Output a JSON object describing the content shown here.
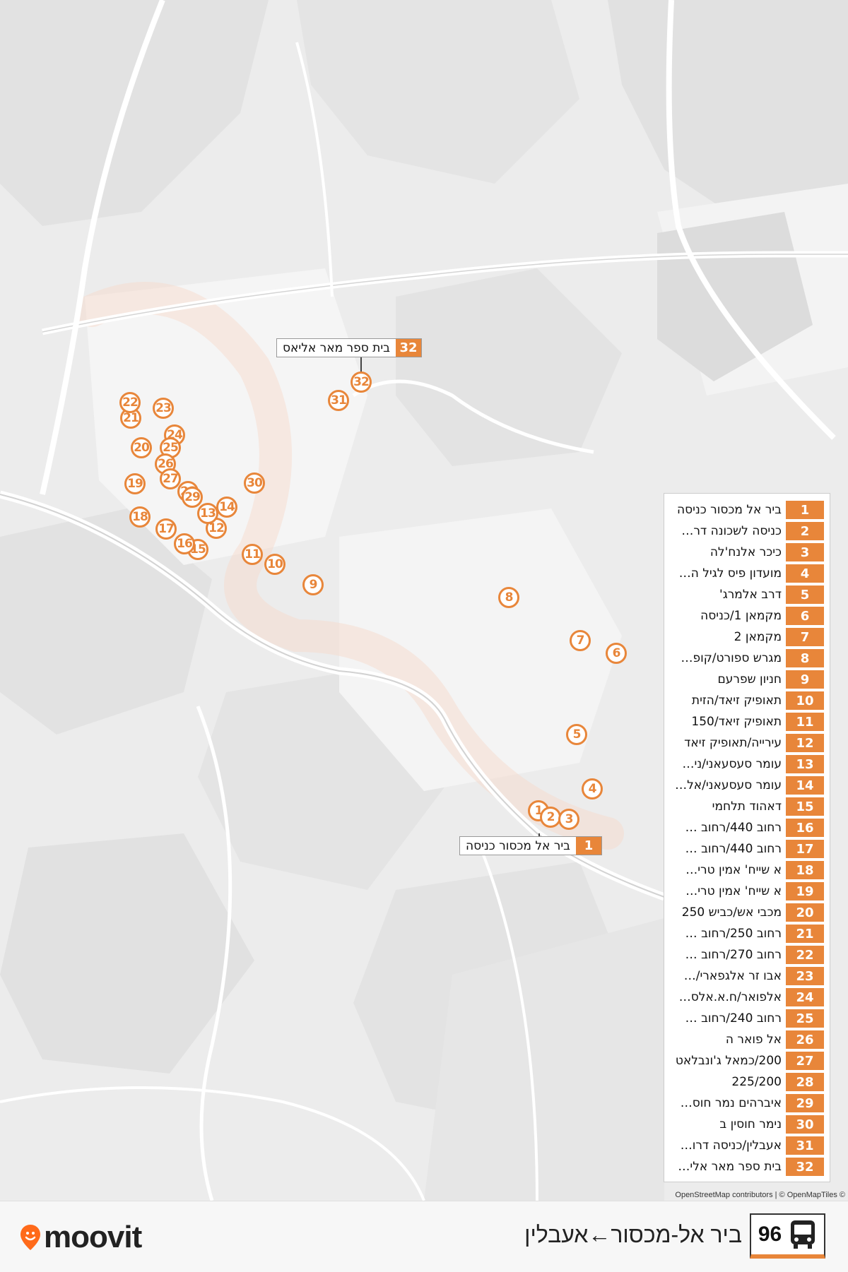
{
  "route": {
    "number": "96",
    "title": "ביר אל-מכסור←אעבלין",
    "icon": "bus-icon"
  },
  "brand": {
    "name": "moovit",
    "pin_icon": "moovit-pin-icon",
    "accent": "#e8863a"
  },
  "attribution": "OpenStreetMap contributors | © OpenMapTiles ©",
  "callouts": {
    "first": {
      "number": "1",
      "name": "ביר אל מכסור כניסה"
    },
    "last": {
      "number": "32",
      "name": "בית ספר מאר אליאס"
    }
  },
  "stops": [
    {
      "number": "1",
      "name": "ביר אל מכסור כניסה"
    },
    {
      "number": "2",
      "name": "כניסה לשכונה דר…"
    },
    {
      "number": "3",
      "name": "כיכר אלנח'לה"
    },
    {
      "number": "4",
      "name": "מועדון פיס לגיל ה…"
    },
    {
      "number": "5",
      "name": "דרב אלמרג'"
    },
    {
      "number": "6",
      "name": "מקמאן 1/כניסה"
    },
    {
      "number": "7",
      "name": "מקמאן 2"
    },
    {
      "number": "8",
      "name": "מגרש ספורט/קופ…"
    },
    {
      "number": "9",
      "name": "חניון שפרעם"
    },
    {
      "number": "10",
      "name": "תאופיק זיאד/הזית"
    },
    {
      "number": "11",
      "name": "תאופיק זיאד/150"
    },
    {
      "number": "12",
      "name": "עירייה/תאופיק זיאד"
    },
    {
      "number": "13",
      "name": "עומר סעסעאני/ני…"
    },
    {
      "number": "14",
      "name": "עומר סעסעאני/אל…"
    },
    {
      "number": "15",
      "name": "דאהוד תלחמי"
    },
    {
      "number": "16",
      "name": "רחוב 440/רחוב …"
    },
    {
      "number": "17",
      "name": "רחוב 440/רחוב …"
    },
    {
      "number": "18",
      "name": "א שייח' אמין טרי…"
    },
    {
      "number": "19",
      "name": "א שייח' אמין טרי…"
    },
    {
      "number": "20",
      "name": "מכבי אש/כביש 250"
    },
    {
      "number": "21",
      "name": "רחוב 250/רחוב …"
    },
    {
      "number": "22",
      "name": "רחוב 270/רחוב …"
    },
    {
      "number": "23",
      "name": "אבו זר אלגפארי/…"
    },
    {
      "number": "24",
      "name": "אלפואר/ח.א.אלס…"
    },
    {
      "number": "25",
      "name": "רחוב 240/רחוב …"
    },
    {
      "number": "26",
      "name": "אל פואר ה"
    },
    {
      "number": "27",
      "name": "200/כמאל ג'ונבלאט"
    },
    {
      "number": "28",
      "name": "225/200"
    },
    {
      "number": "29",
      "name": "איברהים נמר חוס…"
    },
    {
      "number": "30",
      "name": "נימר חוסין ב"
    },
    {
      "number": "31",
      "name": "אעבלין/כניסה דרו…"
    },
    {
      "number": "32",
      "name": "בית ספר מאר אלי…"
    }
  ]
}
